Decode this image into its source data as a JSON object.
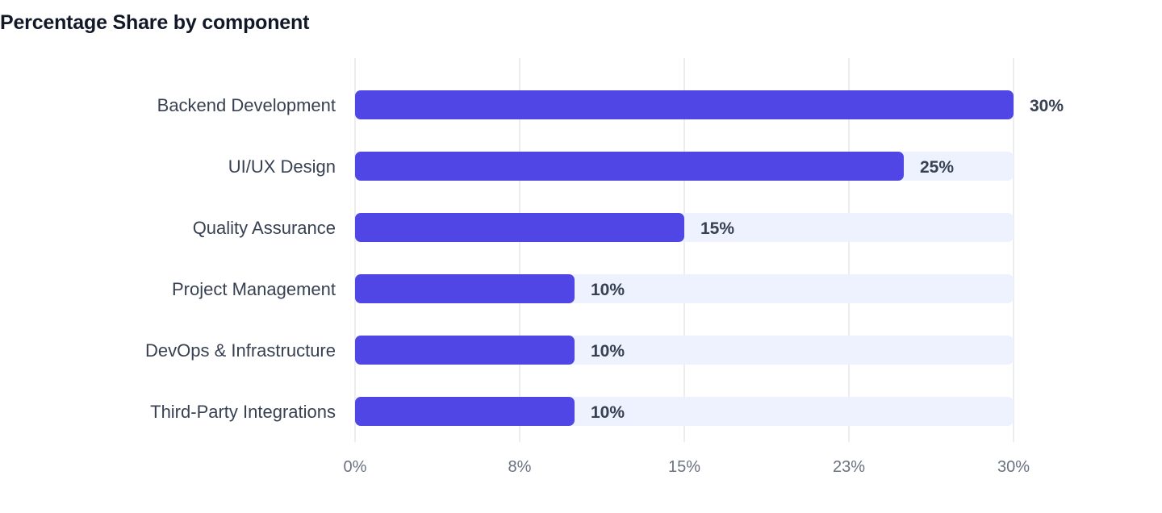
{
  "chart_data": {
    "type": "bar",
    "orientation": "horizontal",
    "title": "Percentage Share by component",
    "categories": [
      "Backend Development",
      "UI/UX Design",
      "Quality Assurance",
      "Project Management",
      "DevOps & Infrastructure",
      "Third-Party Integrations"
    ],
    "values": [
      30,
      25,
      15,
      10,
      10,
      10
    ],
    "value_labels": [
      "30%",
      "25%",
      "15%",
      "10%",
      "10%",
      "10%"
    ],
    "xlim": [
      0,
      30
    ],
    "x_ticks": [
      0,
      7.5,
      15,
      22.5,
      30
    ],
    "x_tick_labels": [
      "0%",
      "8%",
      "15%",
      "23%",
      "30%"
    ],
    "xlabel": "",
    "ylabel": "",
    "grid": true,
    "legend": "none",
    "colors": {
      "bar": "#4f46e5",
      "track": "#eef2ff",
      "grid": "#e5e7eb",
      "title": "#111827",
      "label": "#374151",
      "tick": "#6b7280"
    }
  }
}
